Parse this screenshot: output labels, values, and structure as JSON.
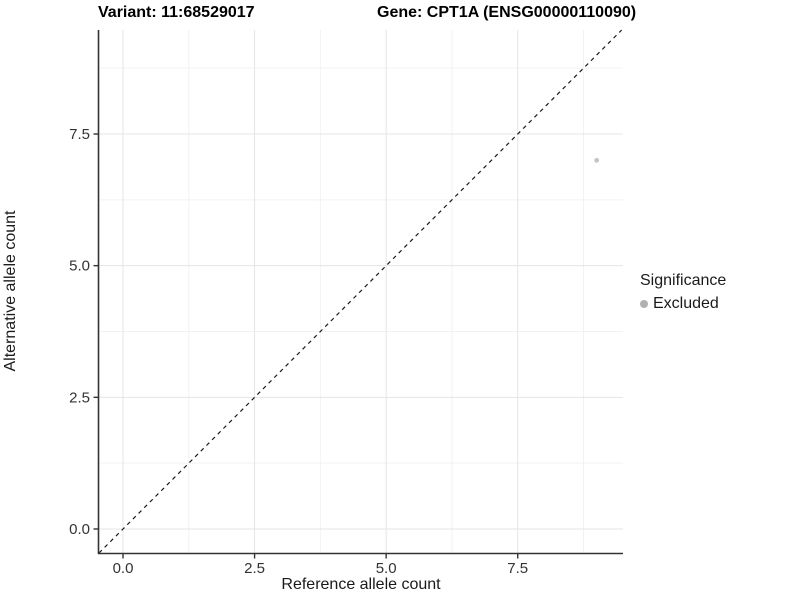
{
  "chart_data": {
    "type": "scatter",
    "title_left": "Variant: 11:68529017",
    "title_right": "Gene: CPT1A (ENSG00000110090)",
    "xlabel": "Reference allele count",
    "ylabel": "Alternative allele count",
    "xlim": [
      -0.456,
      9.5
    ],
    "ylim": [
      -0.456,
      9.475
    ],
    "xticks": [
      0,
      2.5,
      5,
      7.5
    ],
    "yticks": [
      0,
      2.5,
      5,
      7.5
    ],
    "xtick_labels": [
      "0.0",
      "2.5",
      "5.0",
      "7.5"
    ],
    "ytick_labels": [
      "0.0",
      "2.5",
      "5.0",
      "7.5"
    ],
    "xminor": [
      1.25,
      3.75,
      6.25,
      8.75
    ],
    "yminor": [
      1.25,
      3.75,
      6.25,
      8.75
    ],
    "grid": "major+minor",
    "points": [
      {
        "x": 9,
        "y": 7,
        "group": "Excluded"
      }
    ],
    "reference_line": {
      "slope": 1,
      "intercept": 0,
      "style": "dashed"
    },
    "legend": {
      "title": "Significance",
      "position": "right",
      "entries": [
        {
          "label": "Excluded",
          "color": "#b0b0b0"
        }
      ]
    },
    "colors": {
      "point": "#c4c4c4",
      "grid_major": "#e5e5e5",
      "grid_minor": "#f2f2f2",
      "axis": "#333333",
      "tick_text": "#333333",
      "dashed_line": "#1a1a1a",
      "background": "#ffffff"
    }
  }
}
